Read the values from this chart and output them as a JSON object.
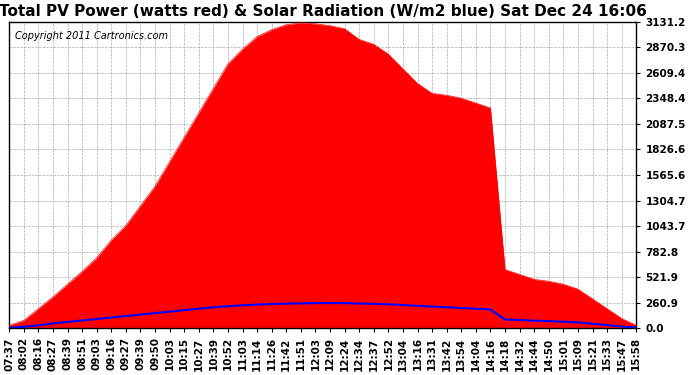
{
  "title": "Total PV Power (watts red) & Solar Radiation (W/m2 blue) Sat Dec 24 16:06",
  "copyright_text": "Copyright 2011 Cartronics.com",
  "background_color": "#ffffff",
  "plot_bg_color": "#ffffff",
  "yticks": [
    0.0,
    260.9,
    521.9,
    782.8,
    1043.7,
    1304.7,
    1565.6,
    1826.6,
    2087.5,
    2348.4,
    2609.4,
    2870.3,
    3131.2
  ],
  "ymax": 3131.2,
  "time_labels": [
    "07:37",
    "08:02",
    "08:16",
    "08:27",
    "08:39",
    "08:51",
    "09:03",
    "09:16",
    "09:27",
    "09:39",
    "09:50",
    "10:03",
    "10:15",
    "10:27",
    "10:39",
    "10:52",
    "11:03",
    "11:14",
    "11:26",
    "11:42",
    "11:51",
    "12:03",
    "12:09",
    "12:24",
    "12:34",
    "12:37",
    "12:52",
    "13:04",
    "13:16",
    "13:31",
    "13:42",
    "13:54",
    "14:04",
    "14:16",
    "14:18",
    "14:32",
    "14:44",
    "14:50",
    "15:01",
    "15:09",
    "15:21",
    "15:33",
    "15:47",
    "15:58"
  ],
  "pv_power": [
    30,
    80,
    200,
    320,
    450,
    580,
    720,
    900,
    1050,
    1250,
    1450,
    1700,
    1950,
    2200,
    2450,
    2700,
    2850,
    2980,
    3050,
    3100,
    3120,
    3110,
    3090,
    3060,
    2950,
    2900,
    2800,
    2650,
    2500,
    2400,
    2380,
    2350,
    2300,
    2250,
    600,
    550,
    500,
    480,
    450,
    400,
    300,
    200,
    100,
    30
  ],
  "solar_radiation": [
    5,
    15,
    30,
    50,
    65,
    80,
    95,
    110,
    125,
    140,
    155,
    170,
    185,
    200,
    215,
    225,
    235,
    242,
    248,
    252,
    255,
    257,
    258,
    257,
    253,
    250,
    245,
    238,
    230,
    222,
    215,
    208,
    200,
    192,
    90,
    85,
    78,
    73,
    67,
    60,
    47,
    33,
    18,
    7
  ],
  "fill_color": "#ff0000",
  "line_color": "#0000ff",
  "grid_color": "#aaaaaa",
  "title_fontsize": 11,
  "tick_label_fontsize": 7.5,
  "axis_label_color": "#000000"
}
